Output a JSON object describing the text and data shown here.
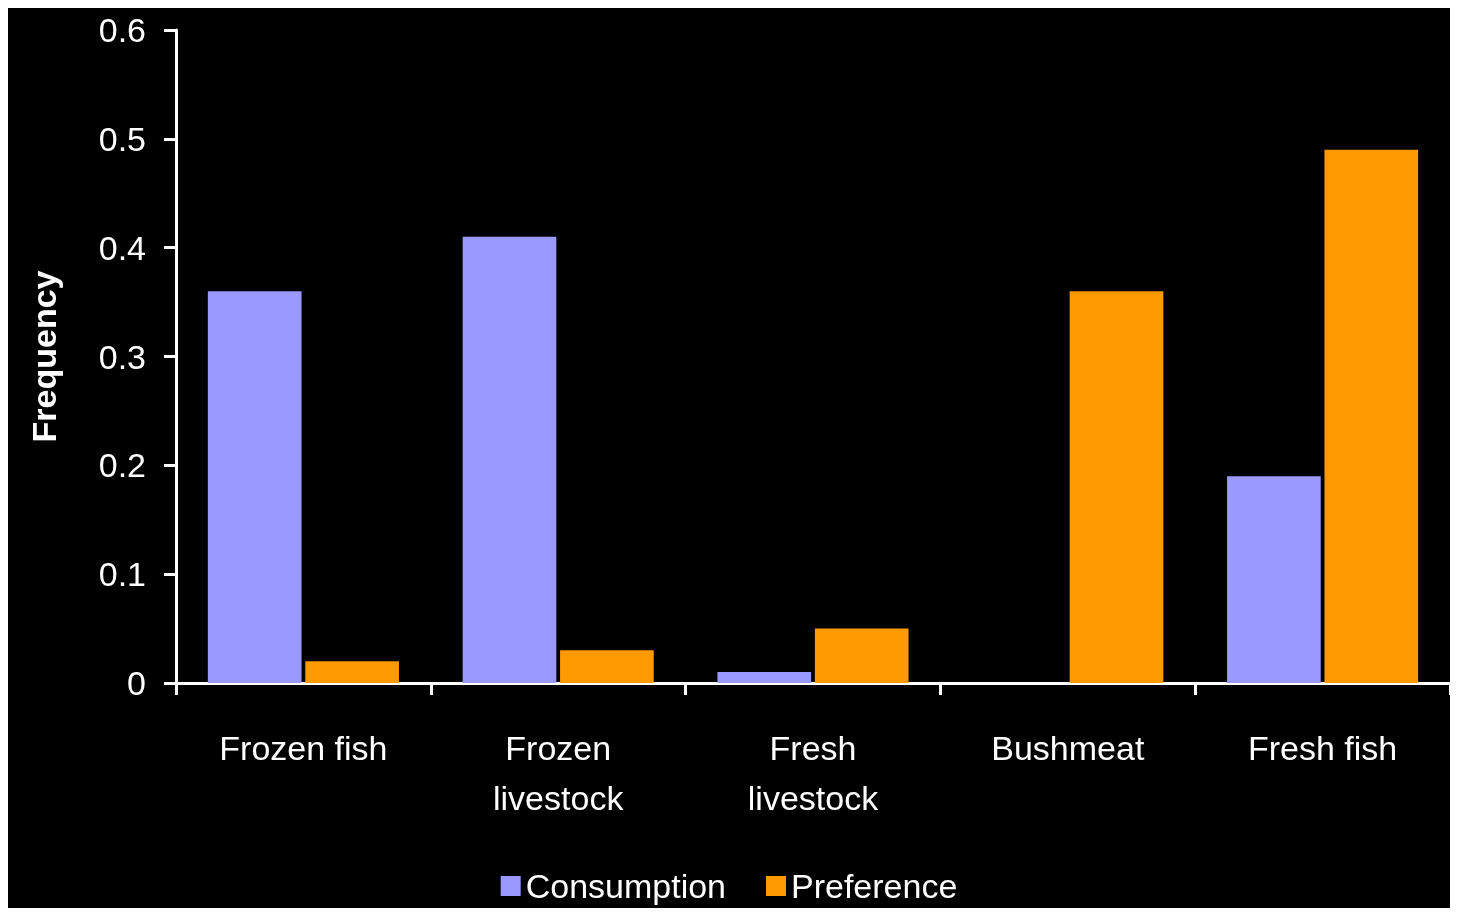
{
  "chart_data": {
    "type": "bar",
    "ylabel": "Frequency",
    "categories": [
      "Frozen fish",
      "Frozen livestock",
      "Fresh livestock",
      "Bushmeat",
      "Fresh fish"
    ],
    "series": [
      {
        "name": "Consumption",
        "color": "#9999ff",
        "values": [
          0.36,
          0.41,
          0.01,
          0,
          0.19
        ]
      },
      {
        "name": "Preference",
        "color": "#ff9900",
        "values": [
          0.02,
          0.03,
          0.05,
          0.36,
          0.49
        ]
      }
    ],
    "ylim": [
      0,
      0.6
    ],
    "yticks": [
      0,
      0.1,
      0.2,
      0.3,
      0.4,
      0.5,
      0.6
    ],
    "grid": false,
    "legend": "bottom"
  }
}
